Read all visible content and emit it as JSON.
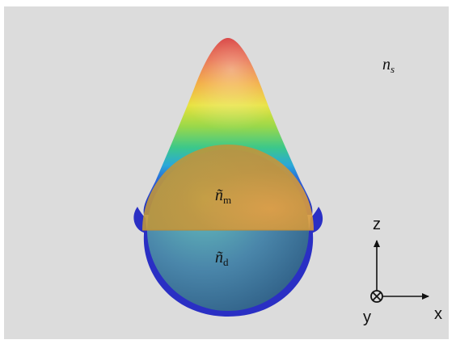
{
  "labels": {
    "substrate": {
      "main": "n",
      "sub": "s"
    },
    "metal": {
      "main": "ñ",
      "sub": "m"
    },
    "dielectric": {
      "main": "ñ",
      "sub": "d"
    }
  },
  "axes": {
    "z": "z",
    "x": "x",
    "y": "y"
  },
  "colors": {
    "background_panel": "#dcdcdc",
    "metal_cap": "#c8963c",
    "dielectric_sphere": "#4f8fae",
    "shell": "#2a2fc4"
  }
}
